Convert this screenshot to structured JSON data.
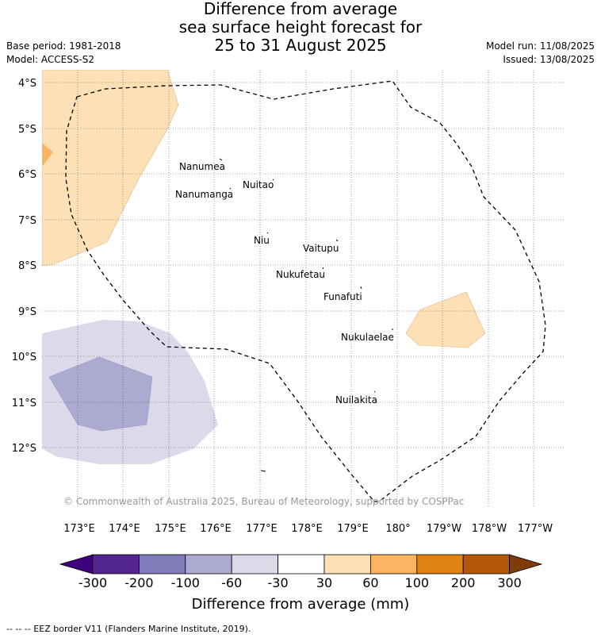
{
  "title": {
    "line1": "Difference from average",
    "line2": "sea surface height forecast for",
    "line3": "25 to 31 August 2025"
  },
  "meta": {
    "base_period": "Base period: 1981-2018",
    "model": "Model: ACCESS-S2",
    "model_run": "Model run: 11/08/2025",
    "issued": "Issued: 13/08/2025"
  },
  "map": {
    "lat_labels": [
      "4°S",
      "5°S",
      "6°S",
      "7°S",
      "8°S",
      "9°S",
      "10°S",
      "11°S",
      "12°S"
    ],
    "lon_labels": [
      "173°E",
      "174°E",
      "175°E",
      "176°E",
      "177°E",
      "178°E",
      "179°E",
      "180°",
      "179°W",
      "178°W",
      "177°W"
    ],
    "places": [
      {
        "name": "Nanumea"
      },
      {
        "name": "Nanumanga"
      },
      {
        "name": "Nuitao"
      },
      {
        "name": "Niu"
      },
      {
        "name": "Vaitupu"
      },
      {
        "name": "Nukufetau"
      },
      {
        "name": "Funafuti"
      },
      {
        "name": "Nukulaelae"
      },
      {
        "name": "Nuilakita"
      }
    ],
    "credit": "© Commonwealth of Australia 2025, Bureau of Meteorology, supported by COSPPac"
  },
  "legend": {
    "title": "Difference from average (mm)",
    "tick_labels": [
      "-300",
      "-200",
      "-100",
      "-60",
      "-30",
      "30",
      "60",
      "100",
      "200",
      "300"
    ],
    "colors": [
      "#3f007d",
      "#54278f",
      "#807dba",
      "#adaad2",
      "#dadaeb",
      "#ffffff",
      "#fde0b6",
      "#fdb462",
      "#e08214",
      "#b35806",
      "#7f3b08"
    ],
    "eez_line_color": "#000000",
    "eez_line_style": "dashed"
  },
  "footer": "-- -- -- EEZ border V11 (Flanders Marine Institute, 2019)."
}
